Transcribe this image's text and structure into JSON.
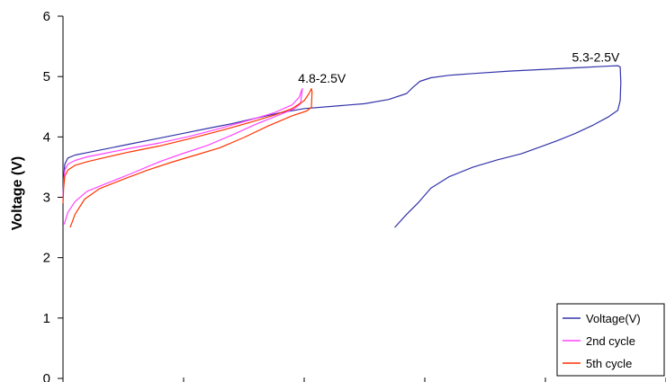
{
  "chart_data": {
    "type": "line",
    "title": "",
    "xlabel": "",
    "ylabel": "Voltage (V)",
    "ylim": [
      0,
      6
    ],
    "yticks": [
      "0",
      "1",
      "2",
      "3",
      "4",
      "5",
      "6"
    ],
    "xlim": [
      0,
      500
    ],
    "grid": false,
    "legend_position": "bottom-right",
    "annotations": [
      {
        "text": "4.8-2.5V",
        "x": 195,
        "y": 4.9
      },
      {
        "text": "5.3-2.5V",
        "x": 422,
        "y": 5.25
      }
    ],
    "series": [
      {
        "name": "Voltage(V)",
        "color": "#3333aa",
        "x": [
          0,
          0.5,
          1.5,
          4,
          10,
          20,
          35,
          55,
          80,
          100,
          120,
          140,
          160,
          180,
          200,
          225,
          250,
          270,
          285,
          290,
          296,
          305,
          320,
          340,
          370,
          400,
          430,
          450,
          460,
          462,
          462.5,
          462,
          460,
          452,
          440,
          425,
          410,
          395,
          380,
          360,
          340,
          320,
          305,
          295,
          285,
          275
        ],
        "y": [
          3.0,
          3.3,
          3.55,
          3.65,
          3.7,
          3.74,
          3.8,
          3.88,
          3.98,
          4.06,
          4.14,
          4.22,
          4.31,
          4.4,
          4.47,
          4.51,
          4.55,
          4.62,
          4.72,
          4.82,
          4.92,
          4.98,
          5.02,
          5.05,
          5.09,
          5.12,
          5.15,
          5.17,
          5.18,
          5.16,
          4.9,
          4.6,
          4.44,
          4.33,
          4.2,
          4.06,
          3.94,
          3.83,
          3.72,
          3.62,
          3.5,
          3.34,
          3.15,
          2.92,
          2.72,
          2.5
        ]
      },
      {
        "name": "2nd cycle",
        "color": "#ff44ff",
        "x": [
          0,
          0.5,
          1.5,
          4,
          10,
          20,
          35,
          55,
          80,
          105,
          130,
          155,
          175,
          190,
          196,
          198,
          198.5,
          197,
          192,
          180,
          160,
          140,
          120,
          100,
          80,
          55,
          35,
          20,
          10,
          4,
          1
        ],
        "y": [
          2.95,
          3.25,
          3.45,
          3.55,
          3.61,
          3.67,
          3.73,
          3.81,
          3.9,
          4.01,
          4.14,
          4.28,
          4.4,
          4.53,
          4.66,
          4.78,
          4.8,
          4.55,
          4.47,
          4.37,
          4.21,
          4.03,
          3.86,
          3.73,
          3.59,
          3.38,
          3.22,
          3.1,
          2.93,
          2.75,
          2.55
        ]
      },
      {
        "name": "5th cycle",
        "color": "#ff3300",
        "x": [
          0,
          0.5,
          1.5,
          4,
          10,
          20,
          35,
          55,
          80,
          105,
          130,
          155,
          175,
          190,
          200,
          204,
          206,
          206.5,
          206,
          202,
          190,
          170,
          150,
          130,
          110,
          90,
          70,
          50,
          30,
          18,
          10,
          6
        ],
        "y": [
          2.9,
          3.15,
          3.35,
          3.45,
          3.53,
          3.59,
          3.66,
          3.75,
          3.85,
          3.97,
          4.1,
          4.24,
          4.36,
          4.47,
          4.6,
          4.72,
          4.8,
          4.75,
          4.49,
          4.43,
          4.35,
          4.18,
          3.99,
          3.82,
          3.7,
          3.58,
          3.45,
          3.3,
          3.14,
          2.97,
          2.72,
          2.5
        ]
      }
    ]
  }
}
